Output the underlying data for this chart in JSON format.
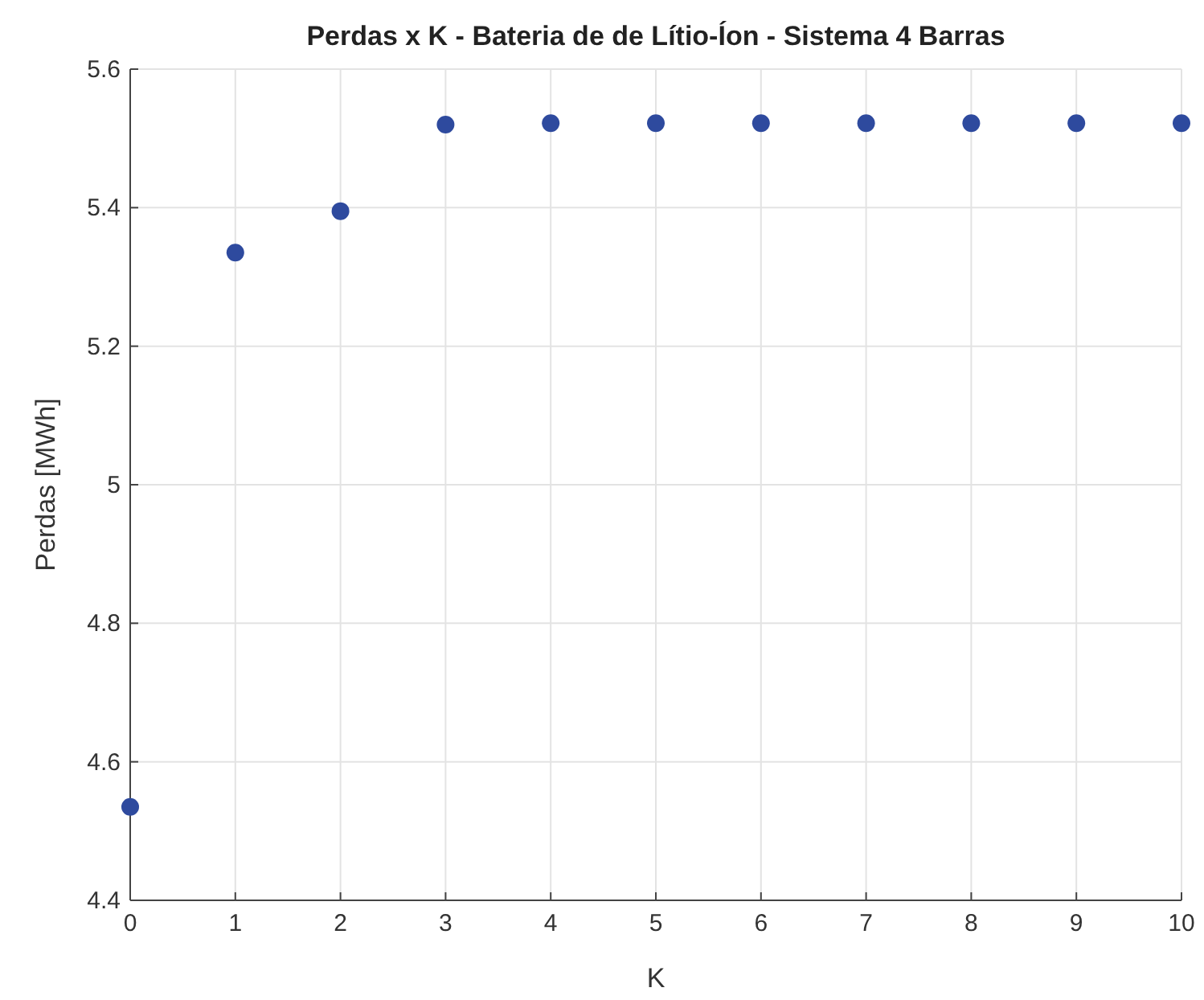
{
  "chart_data": {
    "type": "scatter",
    "title": "Perdas x K - Bateria de de Lítio-Íon - Sistema 4 Barras",
    "xlabel": "K",
    "ylabel": "Perdas [MWh]",
    "x": [
      0,
      1,
      2,
      3,
      4,
      5,
      6,
      7,
      8,
      9,
      10
    ],
    "series": [
      {
        "color": "#2e4a9e",
        "values": [
          4.535,
          5.335,
          5.395,
          5.52,
          5.522,
          5.522,
          5.522,
          5.522,
          5.522,
          5.522,
          5.522
        ]
      }
    ],
    "xlim": [
      0,
      10
    ],
    "xticks": [
      0,
      1,
      2,
      3,
      4,
      5,
      6,
      7,
      8,
      9,
      10
    ],
    "ylim": [
      4.4,
      5.6
    ],
    "yticks": [
      4.4,
      4.6,
      4.8,
      5,
      5.2,
      5.4,
      5.6
    ],
    "grid": true,
    "marker": "circle"
  }
}
